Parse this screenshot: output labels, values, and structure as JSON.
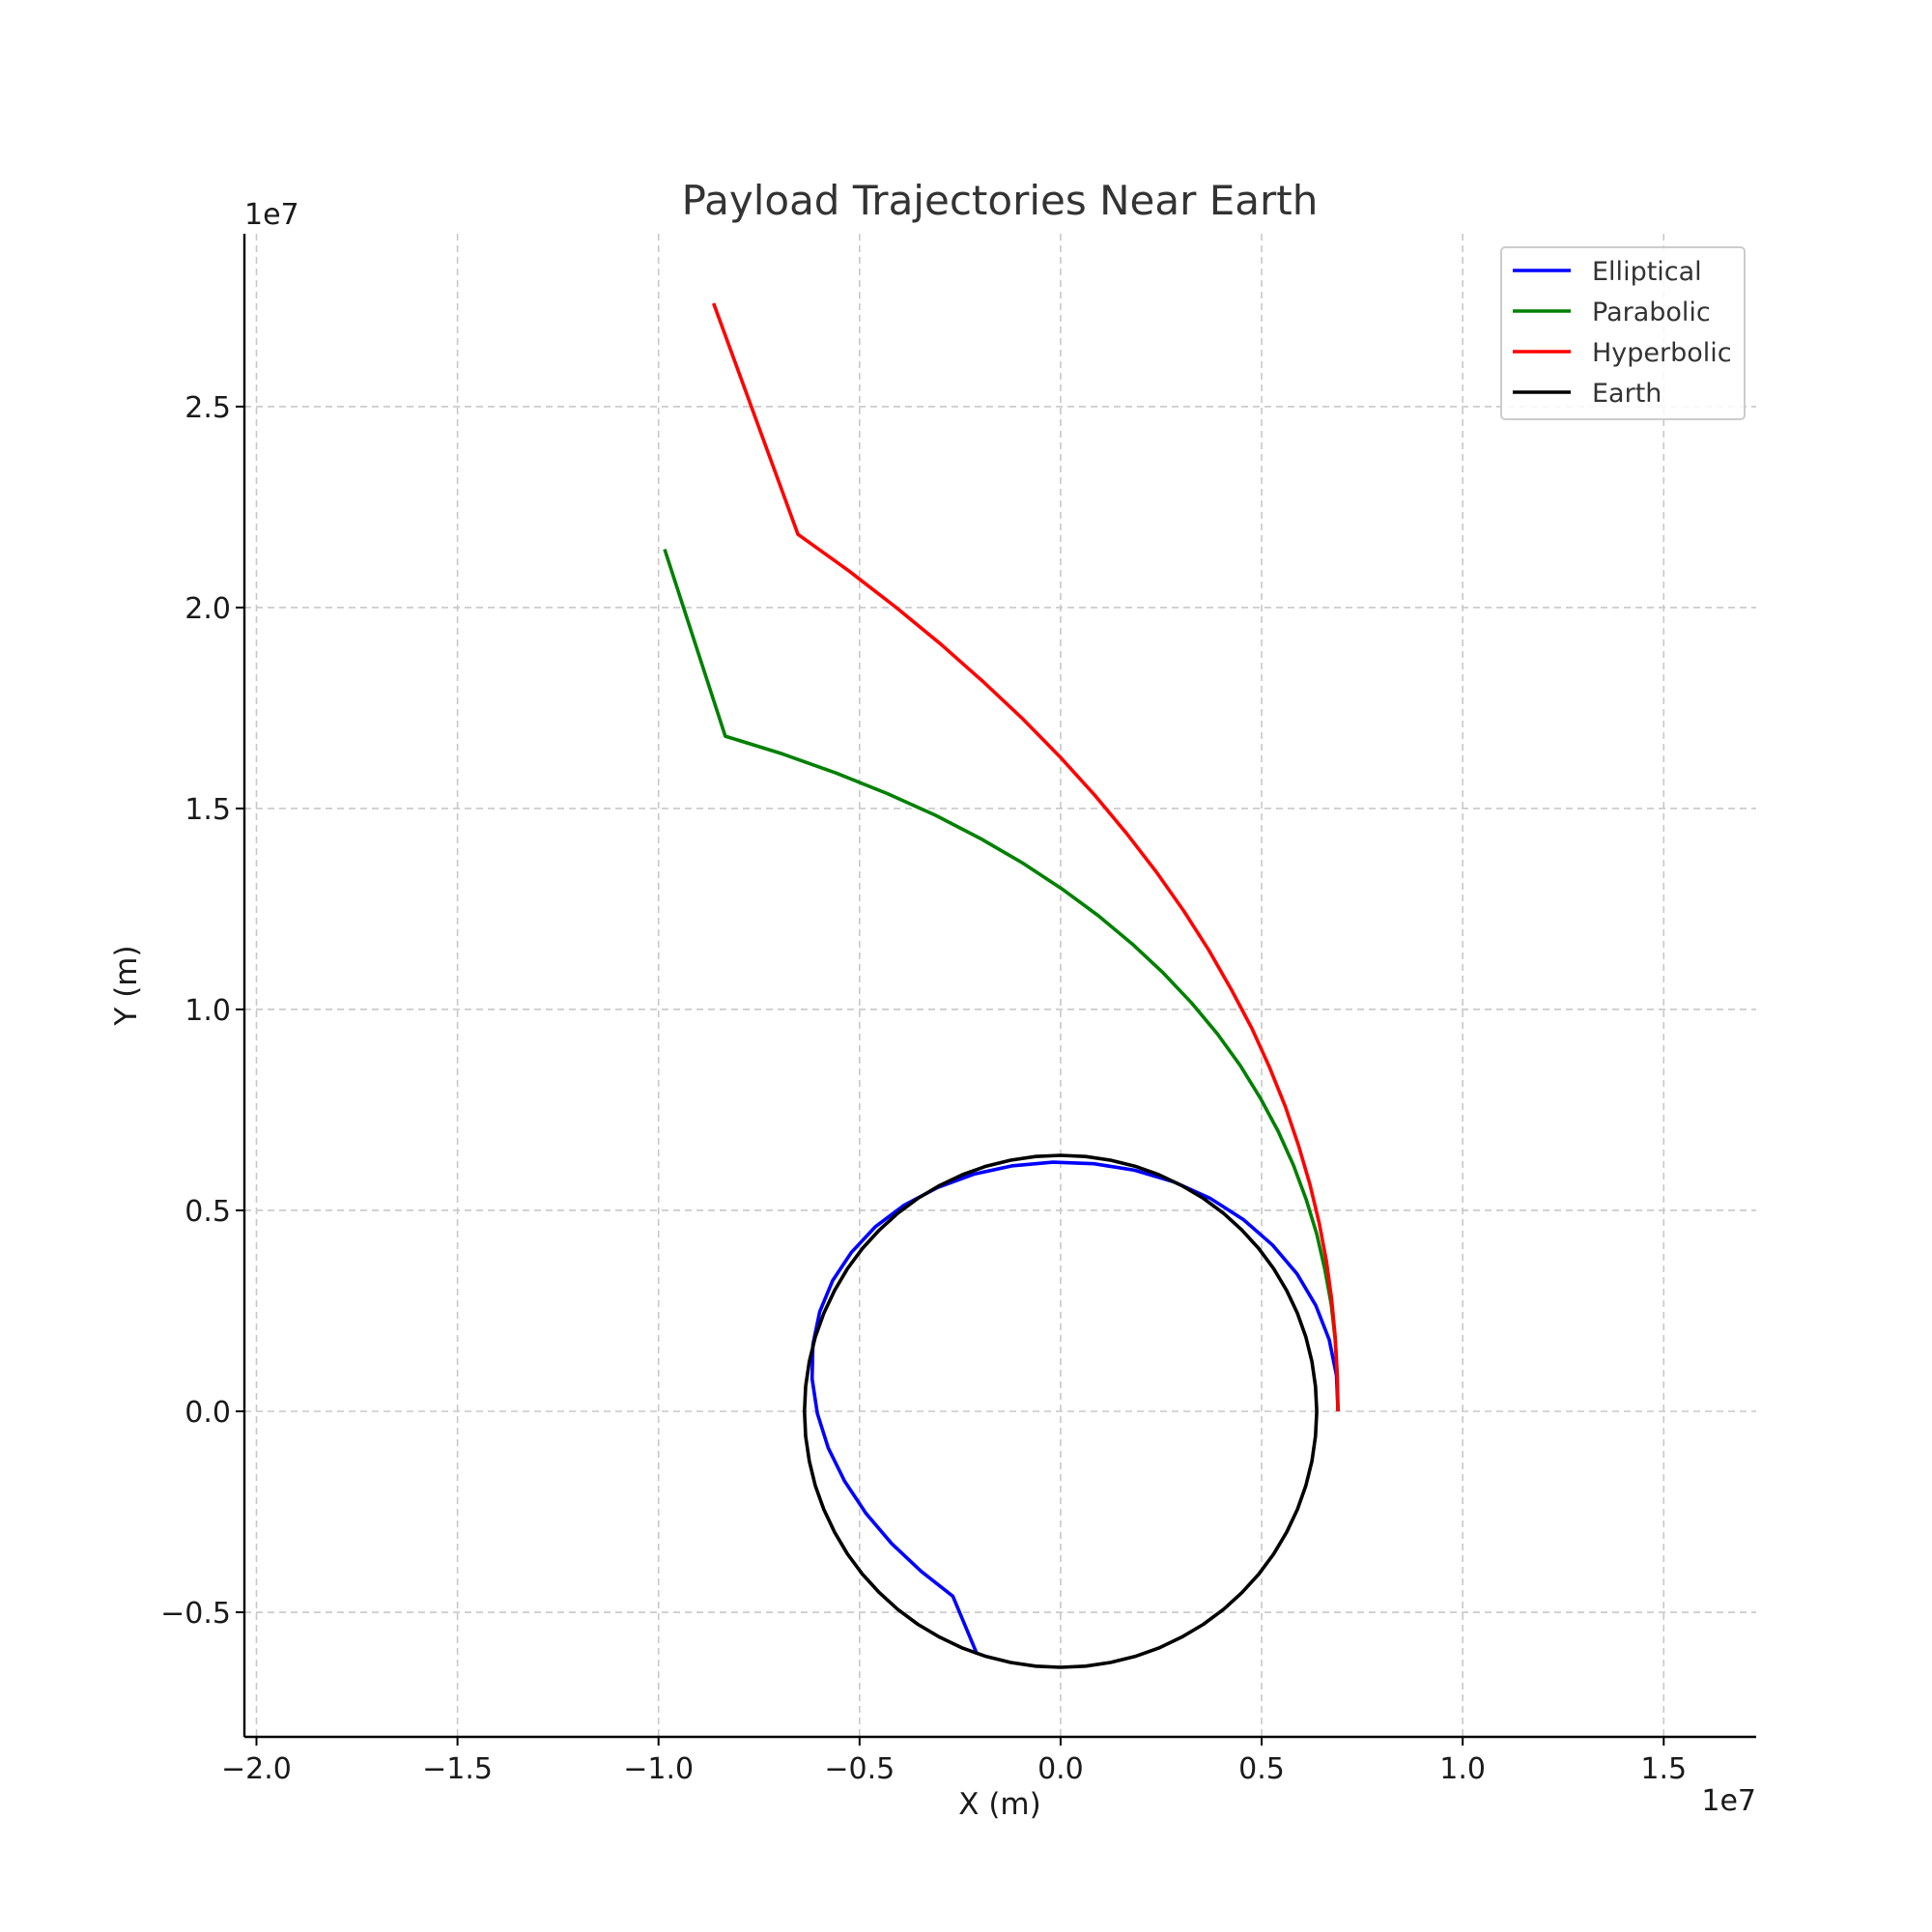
{
  "chart_data": {
    "type": "line",
    "title": "Payload Trajectories Near Earth",
    "xlabel": "X (m)",
    "ylabel": "Y (m)",
    "x_offset_label": "1e7",
    "y_offset_label": "1e7",
    "xlim": [
      -2.03,
      1.73
    ],
    "ylim": [
      -0.81,
      2.93
    ],
    "x_ticks": [
      {
        "value": -2.0,
        "label": "−2.0"
      },
      {
        "value": -1.5,
        "label": "−1.5"
      },
      {
        "value": -1.0,
        "label": "−1.0"
      },
      {
        "value": -0.5,
        "label": "−0.5"
      },
      {
        "value": 0.0,
        "label": "0.0"
      },
      {
        "value": 0.5,
        "label": "0.5"
      },
      {
        "value": 1.0,
        "label": "1.0"
      },
      {
        "value": 1.5,
        "label": "1.5"
      }
    ],
    "y_ticks": [
      {
        "value": -0.5,
        "label": "−0.5"
      },
      {
        "value": 0.0,
        "label": "0.0"
      },
      {
        "value": 0.5,
        "label": "0.5"
      },
      {
        "value": 1.0,
        "label": "1.0"
      },
      {
        "value": 1.5,
        "label": "1.5"
      },
      {
        "value": 2.0,
        "label": "2.0"
      },
      {
        "value": 2.5,
        "label": "2.5"
      }
    ],
    "grid": true,
    "legend_position": "top-right",
    "series": [
      {
        "name": "Elliptical",
        "color": "#0000ff",
        "x": [
          0.69,
          0.686,
          0.668,
          0.635,
          0.588,
          0.527,
          0.455,
          0.372,
          0.281,
          0.184,
          0.083,
          -0.019,
          -0.119,
          -0.216,
          -0.306,
          -0.389,
          -0.461,
          -0.52,
          -0.567,
          -0.599,
          -0.616,
          -0.618,
          -0.605,
          -0.578,
          -0.537,
          -0.484,
          -0.42,
          -0.347,
          -0.268,
          -0.208
        ],
        "y": [
          0.0,
          0.09,
          0.178,
          0.263,
          0.342,
          0.414,
          0.477,
          0.53,
          0.571,
          0.6,
          0.616,
          0.62,
          0.611,
          0.59,
          0.557,
          0.513,
          0.459,
          0.396,
          0.325,
          0.248,
          0.166,
          0.081,
          -0.005,
          -0.091,
          -0.174,
          -0.254,
          -0.329,
          -0.398,
          -0.46,
          -0.604
        ]
      },
      {
        "name": "Parabolic",
        "color": "#008000",
        "x": [
          0.69,
          0.688,
          0.683,
          0.673,
          0.657,
          0.637,
          0.611,
          0.579,
          0.541,
          0.497,
          0.447,
          0.39,
          0.326,
          0.255,
          0.178,
          0.094,
          0.003,
          -0.094,
          -0.199,
          -0.311,
          -0.431,
          -0.558,
          -0.692,
          -0.834,
          -0.985
        ],
        "y": [
          0.0,
          0.089,
          0.178,
          0.266,
          0.354,
          0.441,
          0.527,
          0.613,
          0.697,
          0.779,
          0.86,
          0.939,
          1.016,
          1.091,
          1.163,
          1.233,
          1.3,
          1.364,
          1.425,
          1.483,
          1.537,
          1.588,
          1.636,
          1.68,
          2.145
        ]
      },
      {
        "name": "Hyperbolic",
        "color": "#ff0000",
        "x": [
          0.69,
          0.688,
          0.683,
          0.674,
          0.661,
          0.643,
          0.62,
          0.592,
          0.559,
          0.52,
          0.476,
          0.425,
          0.369,
          0.307,
          0.239,
          0.165,
          0.085,
          -0.001,
          -0.094,
          -0.193,
          -0.298,
          -0.41,
          -0.528,
          -0.653,
          -0.863
        ],
        "y": [
          0.0,
          0.092,
          0.185,
          0.279,
          0.374,
          0.469,
          0.565,
          0.661,
          0.758,
          0.855,
          0.952,
          1.049,
          1.147,
          1.244,
          1.341,
          1.437,
          1.533,
          1.628,
          1.723,
          1.816,
          1.909,
          2.001,
          2.092,
          2.182,
          2.757
        ]
      },
      {
        "name": "Earth",
        "color": "#000000",
        "x": [
          0.637,
          0.634,
          0.625,
          0.61,
          0.589,
          0.562,
          0.53,
          0.493,
          0.451,
          0.405,
          0.355,
          0.301,
          0.244,
          0.185,
          0.124,
          0.062,
          0.0,
          -0.062,
          -0.124,
          -0.185,
          -0.244,
          -0.301,
          -0.355,
          -0.405,
          -0.451,
          -0.493,
          -0.53,
          -0.562,
          -0.589,
          -0.61,
          -0.625,
          -0.634,
          -0.637,
          -0.634,
          -0.625,
          -0.61,
          -0.589,
          -0.562,
          -0.53,
          -0.493,
          -0.451,
          -0.405,
          -0.355,
          -0.301,
          -0.244,
          -0.185,
          -0.124,
          -0.062,
          0.0,
          0.062,
          0.124,
          0.185,
          0.244,
          0.301,
          0.355,
          0.405,
          0.451,
          0.493,
          0.53,
          0.562,
          0.589,
          0.61,
          0.625,
          0.634,
          0.637
        ],
        "y": [
          0.0,
          0.062,
          0.124,
          0.185,
          0.244,
          0.301,
          0.355,
          0.405,
          0.451,
          0.493,
          0.53,
          0.562,
          0.589,
          0.61,
          0.625,
          0.634,
          0.637,
          0.634,
          0.625,
          0.61,
          0.589,
          0.562,
          0.53,
          0.493,
          0.451,
          0.405,
          0.355,
          0.301,
          0.244,
          0.185,
          0.124,
          0.062,
          0.0,
          -0.062,
          -0.124,
          -0.185,
          -0.244,
          -0.301,
          -0.355,
          -0.405,
          -0.451,
          -0.493,
          -0.53,
          -0.562,
          -0.589,
          -0.61,
          -0.625,
          -0.634,
          -0.637,
          -0.634,
          -0.625,
          -0.61,
          -0.589,
          -0.562,
          -0.53,
          -0.493,
          -0.451,
          -0.405,
          -0.355,
          -0.301,
          -0.244,
          -0.185,
          -0.124,
          -0.062,
          0.0
        ]
      }
    ]
  }
}
